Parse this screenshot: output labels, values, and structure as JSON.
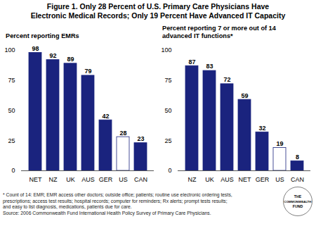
{
  "title": "Figure 1. Only 28 Percent of U.S. Primary Care Physicians Have\nElectronic Medical Records; Only 19 Percent Have Advanced IT Capacity",
  "chart_data": [
    {
      "type": "bar",
      "subtitle": "Percent reporting EMRs",
      "categories": [
        "NET",
        "NZ",
        "UK",
        "AUS",
        "GER",
        "US",
        "CAN"
      ],
      "values": [
        98,
        92,
        89,
        79,
        42,
        28,
        23
      ],
      "colors": [
        "#1a237e",
        "#1a237e",
        "#1a237e",
        "#1a237e",
        "#1a237e",
        "#ffffff",
        "#1a237e"
      ],
      "color": "#1a237e",
      "ylim": [
        0,
        100
      ],
      "yticks": [
        0,
        25,
        50,
        75,
        100
      ],
      "data_labels": true,
      "grid": false
    },
    {
      "type": "bar",
      "subtitle": "Percent reporting 7 or more out of 14\nadvanced IT functions*",
      "categories": [
        "NZ",
        "UK",
        "AUS",
        "NET",
        "GER",
        "US",
        "CAN"
      ],
      "values": [
        87,
        83,
        72,
        59,
        32,
        19,
        8
      ],
      "colors": [
        "#1a237e",
        "#1a237e",
        "#1a237e",
        "#1a237e",
        "#1a237e",
        "#ffffff",
        "#1a237e"
      ],
      "color": "#1a237e",
      "ylim": [
        0,
        100
      ],
      "yticks": [
        0,
        25,
        50,
        75,
        100
      ],
      "data_labels": true,
      "grid": false
    }
  ],
  "footnote": "* Count of 14: EMR; EMR access other doctors; outside office; patients; routine use electronic ordering  tests,\nprescriptions; access test results; hospital records; computer for reminders; Rx alerts; prompt tests results;\nand easy to list diagnosis, medications, patients due for care.\nSource: 2006 Commonwealth Fund International Health Policy Survey of Primary Care Physicians.",
  "annotations": [
    "THE",
    "COMMONWEALTH",
    "FUND"
  ]
}
